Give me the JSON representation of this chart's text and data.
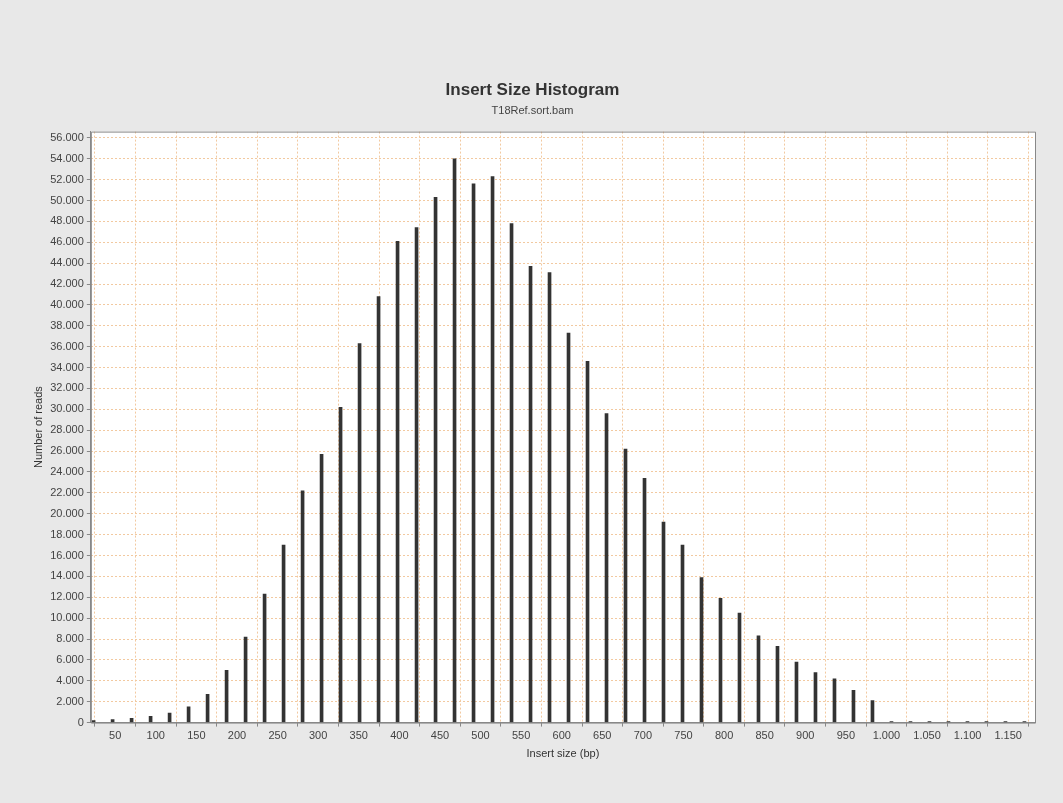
{
  "chart_data": {
    "type": "bar",
    "title": "Insert Size Histogram",
    "subtitle": "T18Ref.sort.bam",
    "xlabel": "Insert size (bp)",
    "ylabel": "Number of reads",
    "x": [
      23.4,
      46.8,
      70.2,
      93.6,
      117,
      140.4,
      163.8,
      187.2,
      210.6,
      234,
      257.4,
      280.8,
      304.2,
      327.6,
      351,
      374.4,
      397.8,
      421.2,
      444.6,
      468,
      491.4,
      514.8,
      538.2,
      561.6,
      585,
      608.4,
      631.8,
      655.2,
      678.6,
      702,
      725.4,
      748.8,
      772.2,
      795.6,
      819,
      842.4,
      865.8,
      889.2,
      912.6,
      936,
      959.4,
      982.8,
      1006.2,
      1029.6,
      1053,
      1076.4,
      1099.8,
      1123.2,
      1146.6,
      1170
    ],
    "values": [
      200,
      300,
      400,
      600,
      900,
      1500,
      2700,
      5000,
      8200,
      12300,
      17000,
      22200,
      25700,
      30200,
      36300,
      40800,
      46100,
      47400,
      50300,
      54000,
      51600,
      52300,
      47800,
      43700,
      43100,
      37300,
      34600,
      29600,
      26200,
      23400,
      19200,
      17000,
      13900,
      11900,
      10500,
      8300,
      7300,
      5800,
      4800,
      4200,
      3100,
      2100,
      100,
      100,
      100,
      100,
      100,
      100,
      100,
      100
    ],
    "color": "#333333",
    "xlim": [
      20,
      1183
    ],
    "xticks": [
      50,
      100,
      150,
      200,
      250,
      300,
      350,
      400,
      450,
      500,
      550,
      600,
      650,
      700,
      750,
      800,
      850,
      900,
      950,
      {
        "value": 1000,
        "label": "1.000"
      },
      {
        "value": 1050,
        "label": "1.050"
      },
      {
        "value": 1100,
        "label": "1.100"
      },
      {
        "value": 1150,
        "label": "1.150"
      }
    ],
    "ylim": [
      0,
      56600
    ],
    "yticks": [
      0,
      {
        "value": 2000,
        "label": "2.000"
      },
      {
        "value": 4000,
        "label": "4.000"
      },
      {
        "value": 6000,
        "label": "6.000"
      },
      {
        "value": 8000,
        "label": "8.000"
      },
      {
        "value": 10000,
        "label": "10.000"
      },
      {
        "value": 12000,
        "label": "12.000"
      },
      {
        "value": 14000,
        "label": "14.000"
      },
      {
        "value": 16000,
        "label": "16.000"
      },
      {
        "value": 18000,
        "label": "18.000"
      },
      {
        "value": 20000,
        "label": "20.000"
      },
      {
        "value": 22000,
        "label": "22.000"
      },
      {
        "value": 24000,
        "label": "24.000"
      },
      {
        "value": 26000,
        "label": "26.000"
      },
      {
        "value": 28000,
        "label": "28.000"
      },
      {
        "value": 30000,
        "label": "30.000"
      },
      {
        "value": 32000,
        "label": "32.000"
      },
      {
        "value": 34000,
        "label": "34.000"
      },
      {
        "value": 36000,
        "label": "36.000"
      },
      {
        "value": 38000,
        "label": "38.000"
      },
      {
        "value": 40000,
        "label": "40.000"
      },
      {
        "value": 42000,
        "label": "42.000"
      },
      {
        "value": 44000,
        "label": "44.000"
      },
      {
        "value": 46000,
        "label": "46.000"
      },
      {
        "value": 48000,
        "label": "48.000"
      },
      {
        "value": 50000,
        "label": "50.000"
      },
      {
        "value": 52000,
        "label": "52.000"
      },
      {
        "value": 54000,
        "label": "54.000"
      },
      {
        "value": 56000,
        "label": "56.000"
      }
    ],
    "grid": true
  }
}
